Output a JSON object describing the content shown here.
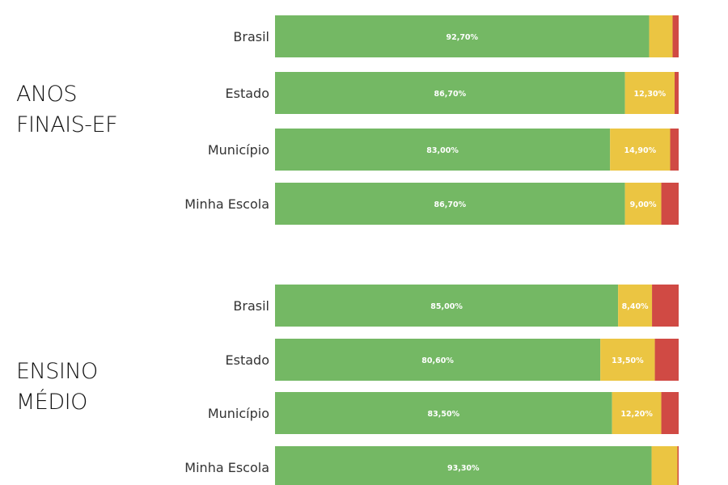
{
  "colors": {
    "green": "#74B864",
    "yellow": "#EBC542",
    "red": "#D04A44"
  },
  "chart_data": [
    {
      "type": "bar",
      "orientation": "horizontal",
      "stacked": true,
      "group_label": [
        "ANOS",
        "FINAIS-EF"
      ],
      "categories": [
        "Brasil",
        "Estado",
        "Município",
        "Minha Escola"
      ],
      "series": [
        {
          "color": "#74B864",
          "values": [
            92.7,
            86.7,
            83.0,
            86.7
          ],
          "labels": [
            "92,70%",
            "86,70%",
            "83,00%",
            "86,70%"
          ]
        },
        {
          "color": "#EBC542",
          "values": [
            5.8,
            12.3,
            14.9,
            9.0
          ],
          "labels": [
            "",
            "12,30%",
            "14,90%",
            "9,00%"
          ]
        },
        {
          "color": "#D04A44",
          "values": [
            1.5,
            1.0,
            2.1,
            4.3
          ],
          "labels": [
            "",
            "",
            "",
            ""
          ]
        }
      ],
      "xlim": [
        0,
        100
      ],
      "grid": false,
      "legend": "none"
    },
    {
      "type": "bar",
      "orientation": "horizontal",
      "stacked": true,
      "group_label": [
        "ENSINO",
        "MÉDIO"
      ],
      "categories": [
        "Brasil",
        "Estado",
        "Município",
        "Minha Escola"
      ],
      "series": [
        {
          "color": "#74B864",
          "values": [
            85.0,
            80.6,
            83.5,
            93.3
          ],
          "labels": [
            "85,00%",
            "80,60%",
            "83,50%",
            "93,30%"
          ]
        },
        {
          "color": "#EBC542",
          "values": [
            8.4,
            13.5,
            12.2,
            6.4
          ],
          "labels": [
            "8,40%",
            "13,50%",
            "12,20%",
            ""
          ]
        },
        {
          "color": "#D04A44",
          "values": [
            6.6,
            5.9,
            4.3,
            0.3
          ],
          "labels": [
            "",
            "",
            "",
            ""
          ]
        }
      ],
      "xlim": [
        0,
        100
      ],
      "grid": false,
      "legend": "none"
    }
  ]
}
